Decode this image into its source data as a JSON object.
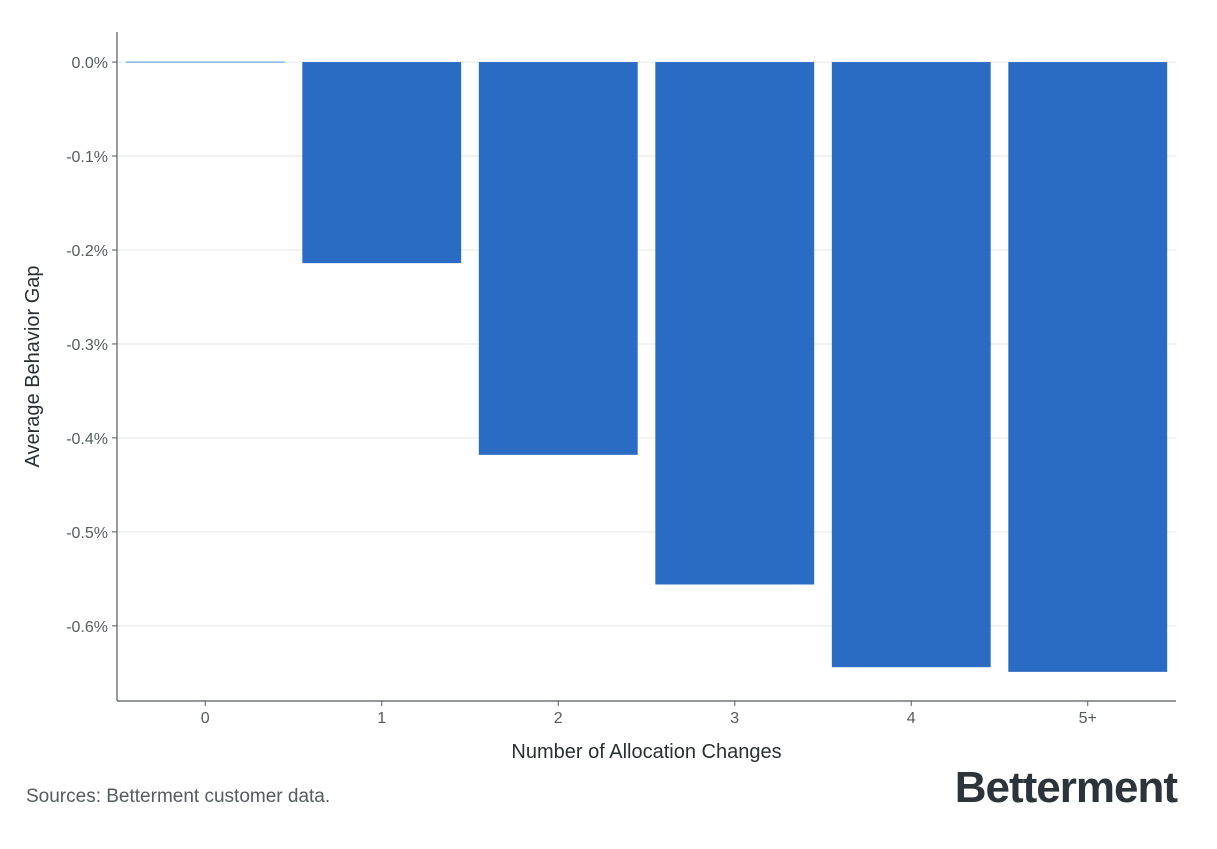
{
  "chart_data": {
    "type": "bar",
    "categories": [
      "0",
      "1",
      "2",
      "3",
      "4",
      "5+"
    ],
    "values": [
      0.0,
      -0.214,
      -0.418,
      -0.556,
      -0.644,
      -0.649
    ],
    "xlabel": "Number of Allocation Changes",
    "ylabel": "Average Behavior Gap",
    "ylim": [
      -0.68,
      0.032
    ],
    "yticks": [
      0.0,
      -0.1,
      -0.2,
      -0.3,
      -0.4,
      -0.5,
      -0.6
    ],
    "ytick_labels": [
      "0.0%",
      "-0.1%",
      "-0.2%",
      "-0.3%",
      "-0.4%",
      "-0.5%",
      "-0.6%"
    ],
    "grid": "horizontal",
    "legend": "none",
    "colors": {
      "bar": "#2a6bc4",
      "zero_bar": "#8ab0e0",
      "axis": "#555b60",
      "grid": "#e6e6e6",
      "text": "#2a2f33"
    }
  },
  "footer": {
    "source": "Sources: Betterment customer data.",
    "brand": "Betterment"
  }
}
